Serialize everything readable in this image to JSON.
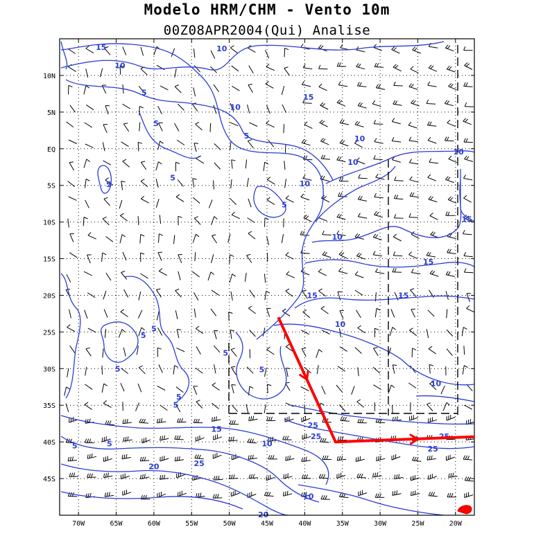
{
  "header": {
    "title": "Modelo HRM/CHM - Vento 10m",
    "subtitle": "00Z08APR2004(Qui) Analise"
  },
  "map": {
    "projection": "lat-lon",
    "lon_range": [
      -72.5,
      -17.5
    ],
    "lat_range": [
      -50,
      15
    ],
    "lat_ticks": [
      {
        "value": 10,
        "label": "10N"
      },
      {
        "value": 5,
        "label": "5N"
      },
      {
        "value": 0,
        "label": "EQ"
      },
      {
        "value": -5,
        "label": "5S"
      },
      {
        "value": -10,
        "label": "10S"
      },
      {
        "value": -15,
        "label": "15S"
      },
      {
        "value": -20,
        "label": "20S"
      },
      {
        "value": -25,
        "label": "25S"
      },
      {
        "value": -30,
        "label": "30S"
      },
      {
        "value": -35,
        "label": "35S"
      },
      {
        "value": -40,
        "label": "40S"
      },
      {
        "value": -45,
        "label": "45S"
      }
    ],
    "lon_ticks": [
      {
        "value": -70,
        "label": "70W"
      },
      {
        "value": -65,
        "label": "65W"
      },
      {
        "value": -60,
        "label": "60W"
      },
      {
        "value": -55,
        "label": "55W"
      },
      {
        "value": -50,
        "label": "50W"
      },
      {
        "value": -45,
        "label": "45W"
      },
      {
        "value": -40,
        "label": "40W"
      },
      {
        "value": -35,
        "label": "35W"
      },
      {
        "value": -30,
        "label": "30W"
      },
      {
        "value": -25,
        "label": "25W"
      },
      {
        "value": -20,
        "label": "20W"
      }
    ],
    "grid": "dotted",
    "contour_color": "#2a3cd6",
    "route_color": "#ff0000",
    "contour_labels": [
      {
        "text": "15",
        "lon": -67.0,
        "lat": 13.5
      },
      {
        "text": "10",
        "lon": -51.0,
        "lat": 13.3
      },
      {
        "text": "10",
        "lon": -64.5,
        "lat": 11.0
      },
      {
        "text": "5",
        "lon": -61.3,
        "lat": 7.3
      },
      {
        "text": "15",
        "lon": -39.5,
        "lat": 6.7
      },
      {
        "text": "10",
        "lon": -49.2,
        "lat": 5.3
      },
      {
        "text": "5",
        "lon": -47.7,
        "lat": 1.4
      },
      {
        "text": "5",
        "lon": -59.7,
        "lat": 3.1
      },
      {
        "text": "10",
        "lon": -32.7,
        "lat": 1.0
      },
      {
        "text": "10",
        "lon": -19.6,
        "lat": -0.8
      },
      {
        "text": "10",
        "lon": -33.6,
        "lat": -2.2
      },
      {
        "text": "5",
        "lon": -57.5,
        "lat": -4.3
      },
      {
        "text": "5",
        "lon": -66.0,
        "lat": -5.2
      },
      {
        "text": "5",
        "lon": -42.7,
        "lat": -8.0
      },
      {
        "text": "10",
        "lon": -40.0,
        "lat": -5.1
      },
      {
        "text": "15",
        "lon": -18.5,
        "lat": -10.0
      },
      {
        "text": "10",
        "lon": -35.7,
        "lat": -12.4
      },
      {
        "text": "15",
        "lon": -23.6,
        "lat": -15.8
      },
      {
        "text": "15",
        "lon": -39.0,
        "lat": -20.4
      },
      {
        "text": "15",
        "lon": -26.9,
        "lat": -20.4
      },
      {
        "text": "10",
        "lon": -35.3,
        "lat": -24.3
      },
      {
        "text": "5",
        "lon": -60.0,
        "lat": -24.9
      },
      {
        "text": "5",
        "lon": -61.4,
        "lat": -25.8
      },
      {
        "text": "5",
        "lon": -50.5,
        "lat": -28.2
      },
      {
        "text": "5",
        "lon": -64.8,
        "lat": -30.4
      },
      {
        "text": "5",
        "lon": -45.7,
        "lat": -30.5
      },
      {
        "text": "10",
        "lon": -22.6,
        "lat": -32.4
      },
      {
        "text": "5",
        "lon": -56.7,
        "lat": -34.2
      },
      {
        "text": "5",
        "lon": -57.1,
        "lat": -35.3
      },
      {
        "text": "15",
        "lon": -51.7,
        "lat": -38.6
      },
      {
        "text": "25",
        "lon": -38.9,
        "lat": -38.1
      },
      {
        "text": "25",
        "lon": -38.5,
        "lat": -39.6
      },
      {
        "text": "10",
        "lon": -45.0,
        "lat": -40.6
      },
      {
        "text": "5",
        "lon": -70.5,
        "lat": -40.9
      },
      {
        "text": "5",
        "lon": -65.9,
        "lat": -40.6
      },
      {
        "text": "25",
        "lon": -21.5,
        "lat": -39.6
      },
      {
        "text": "25",
        "lon": -23.0,
        "lat": -41.3
      },
      {
        "text": "20",
        "lon": -60.0,
        "lat": -43.7
      },
      {
        "text": "25",
        "lon": -54.0,
        "lat": -43.3
      },
      {
        "text": "10",
        "lon": -39.5,
        "lat": -47.8
      },
      {
        "text": "20",
        "lon": -45.5,
        "lat": -50.3
      }
    ]
  },
  "route": {
    "points": [
      {
        "lon": -43.5,
        "lat": -23.0
      },
      {
        "lon": -35.9,
        "lat": -40.0
      },
      {
        "lon": -17.5,
        "lat": -39.3
      }
    ],
    "arrows": [
      {
        "lon": -39.7,
        "lat": -31.5
      },
      {
        "lon": -25.0,
        "lat": -39.6
      }
    ]
  }
}
